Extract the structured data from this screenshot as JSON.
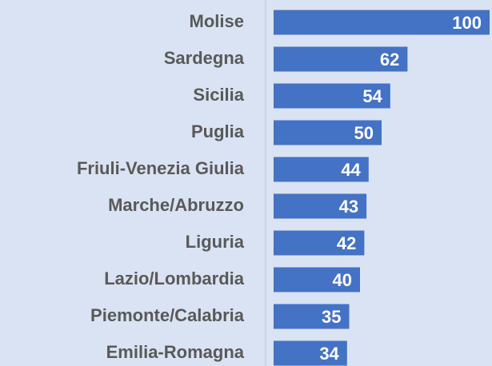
{
  "chart_data": {
    "type": "barh",
    "categories": [
      "Molise",
      "Sardegna",
      "Sicilia",
      "Puglia",
      "Friuli-Venezia Giulia",
      "Marche/Abruzzo",
      "Liguria",
      "Lazio/Lombardia",
      "Piemonte/Calabria",
      "Emilia-Romagna"
    ],
    "values": [
      100,
      62,
      54,
      50,
      44,
      43,
      42,
      40,
      35,
      34
    ],
    "color": "#4472c4",
    "xlim": [
      0,
      100
    ]
  }
}
